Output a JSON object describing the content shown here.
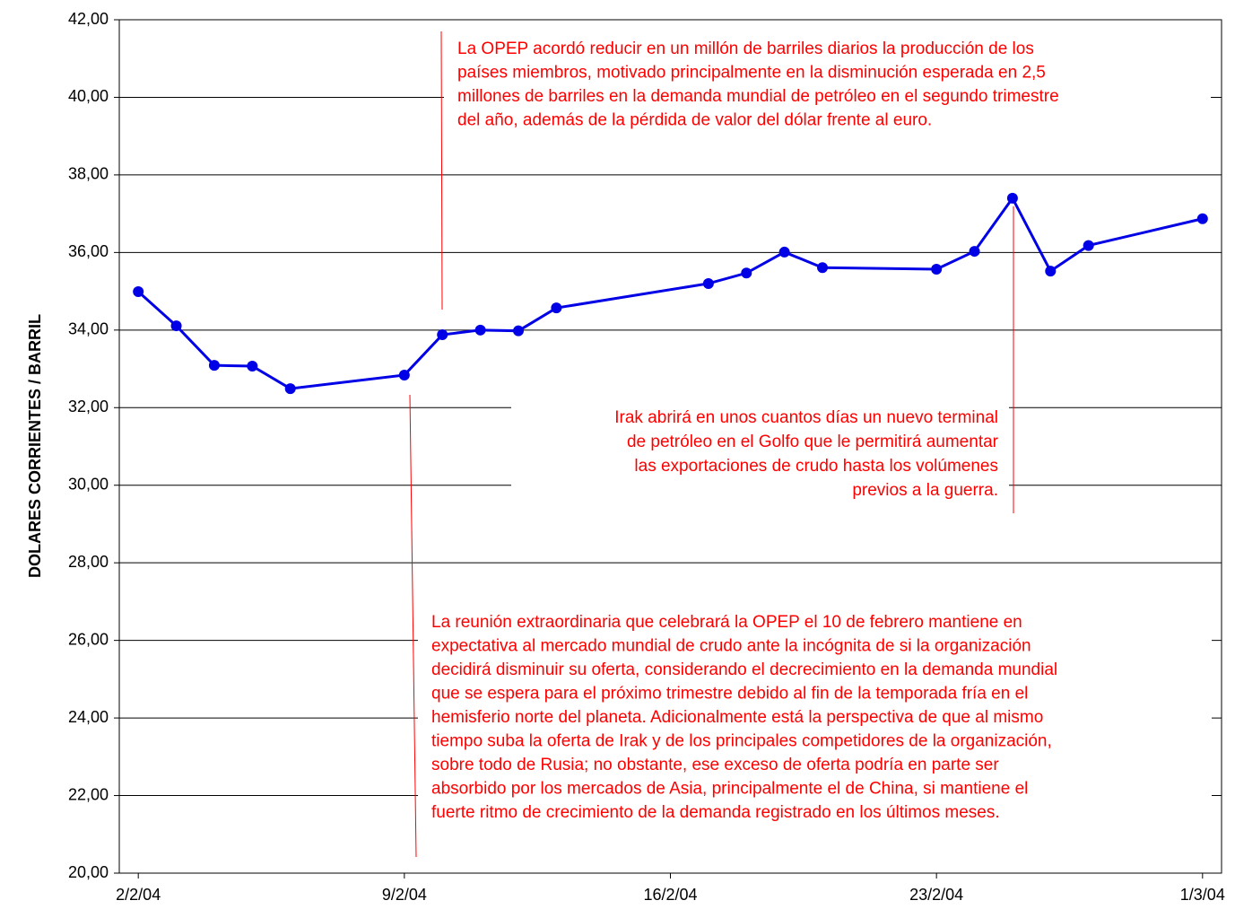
{
  "chart_data": {
    "type": "line",
    "y_label": "DOLARES CORRIENTES / BARRIL",
    "x": [
      "2004-02-02",
      "2004-02-03",
      "2004-02-04",
      "2004-02-05",
      "2004-02-06",
      "2004-02-09",
      "2004-02-10",
      "2004-02-11",
      "2004-02-12",
      "2004-02-13",
      "2004-02-17",
      "2004-02-18",
      "2004-02-19",
      "2004-02-20",
      "2004-02-23",
      "2004-02-24",
      "2004-02-25",
      "2004-02-26",
      "2004-02-27",
      "2004-03-01"
    ],
    "series": [
      {
        "color": "#0000e6",
        "values": [
          34.99,
          34.11,
          33.09,
          33.07,
          32.49,
          32.84,
          33.88,
          34.0,
          33.98,
          34.57,
          35.2,
          35.47,
          36.01,
          35.61,
          35.57,
          36.03,
          37.4,
          35.52,
          36.18,
          36.87
        ]
      }
    ],
    "xlim": [
      "2004-02-01T12:00",
      "2004-03-01T12:00"
    ],
    "xticks": [
      {
        "value": "2004-02-02",
        "label": "2/2/04"
      },
      {
        "value": "2004-02-09",
        "label": "9/2/04"
      },
      {
        "value": "2004-02-16",
        "label": "16/2/04"
      },
      {
        "value": "2004-02-23",
        "label": "23/2/04"
      },
      {
        "value": "2004-03-01",
        "label": "1/3/04"
      }
    ],
    "ylim": [
      20,
      42
    ],
    "yticks": [
      {
        "value": 20,
        "label": "20,00"
      },
      {
        "value": 22,
        "label": "22,00"
      },
      {
        "value": 24,
        "label": "24,00"
      },
      {
        "value": 26,
        "label": "26,00"
      },
      {
        "value": 28,
        "label": "28,00"
      },
      {
        "value": 30,
        "label": "30,00"
      },
      {
        "value": 32,
        "label": "32,00"
      },
      {
        "value": 34,
        "label": "34,00"
      },
      {
        "value": 36,
        "label": "36,00"
      },
      {
        "value": 38,
        "label": "38,00"
      },
      {
        "value": 40,
        "label": "40,00"
      },
      {
        "value": 42,
        "label": "42,00"
      }
    ],
    "grid": true,
    "annotations": [
      {
        "lines": [
          "La OPEP acordó reducir en un millón de barriles diarios la producción de los",
          "países miembros, motivado principalmente en la disminución esperada en 2,5",
          "millones de barriles en la demanda mundial de petróleo en el segundo trimestre",
          "del año, además de la pérdida de valor del dólar frente al euro."
        ]
      },
      {
        "lines": [
          "Irak abrirá en unos cuantos días un nuevo terminal",
          "de petróleo en el Golfo que le permitirá aumentar",
          "las exportaciones de crudo hasta los volúmenes",
          "previos a la guerra."
        ]
      },
      {
        "lines": [
          "La reunión extraordinaria que celebrará la OPEP el 10 de febrero mantiene en",
          "expectativa al mercado mundial de crudo ante la incógnita de si la organización",
          "decidirá disminuir su oferta, considerando el decrecimiento en la demanda mundial",
          "que se espera para el próximo trimestre debido al fin de la temporada fría en el",
          "hemisferio norte del planeta. Adicionalmente está la perspectiva de que al mismo",
          "tiempo suba la oferta de Irak y de los principales competidores de la organización,",
          "sobre todo de Rusia; no obstante, ese exceso de oferta podría en parte ser",
          "absorbido por los mercados de Asia, principalmente el de China, si mantiene el",
          "fuerte ritmo de crecimiento de la demanda registrado en los últimos meses."
        ]
      }
    ]
  }
}
